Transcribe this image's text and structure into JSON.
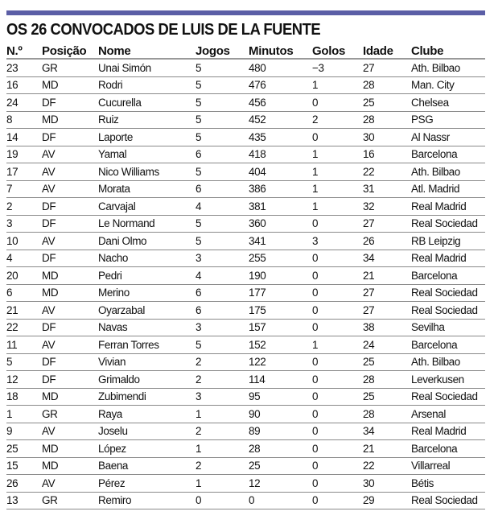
{
  "title": "OS 26 CONVOCADOS DE LUIS DE LA FUENTE",
  "accent_color": "#5b5ea6",
  "columns": [
    "N.º",
    "Posição",
    "Nome",
    "Jogos",
    "Minutos",
    "Golos",
    "Idade",
    "Clube"
  ],
  "rows": [
    [
      "23",
      "GR",
      "Unai Simón",
      "5",
      "480",
      "−3",
      "27",
      "Ath. Bilbao"
    ],
    [
      "16",
      "MD",
      "Rodri",
      "5",
      "476",
      "1",
      "28",
      "Man. City"
    ],
    [
      "24",
      "DF",
      "Cucurella",
      "5",
      "456",
      "0",
      "25",
      "Chelsea"
    ],
    [
      "8",
      "MD",
      "Ruiz",
      "5",
      "452",
      "2",
      "28",
      "PSG"
    ],
    [
      "14",
      "DF",
      "Laporte",
      "5",
      "435",
      "0",
      "30",
      "Al Nassr"
    ],
    [
      "19",
      "AV",
      "Yamal",
      "6",
      "418",
      "1",
      "16",
      "Barcelona"
    ],
    [
      "17",
      "AV",
      "Nico Williams",
      "5",
      "404",
      "1",
      "22",
      "Ath. Bilbao"
    ],
    [
      "7",
      "AV",
      "Morata",
      "6",
      "386",
      "1",
      "31",
      "Atl. Madrid"
    ],
    [
      "2",
      "DF",
      "Carvajal",
      "4",
      "381",
      "1",
      "32",
      "Real Madrid"
    ],
    [
      "3",
      "DF",
      "Le Normand",
      "5",
      "360",
      "0",
      "27",
      "Real Sociedad"
    ],
    [
      "10",
      "AV",
      "Dani Olmo",
      "5",
      "341",
      "3",
      "26",
      "RB Leipzig"
    ],
    [
      "4",
      "DF",
      "Nacho",
      "3",
      "255",
      "0",
      "34",
      "Real Madrid"
    ],
    [
      "20",
      "MD",
      "Pedri",
      "4",
      "190",
      "0",
      "21",
      "Barcelona"
    ],
    [
      "6",
      "MD",
      "Merino",
      "6",
      "177",
      "0",
      "27",
      "Real Sociedad"
    ],
    [
      "21",
      "AV",
      "Oyarzabal",
      "6",
      "175",
      "0",
      "27",
      "Real Sociedad"
    ],
    [
      "22",
      "DF",
      "Navas",
      "3",
      "157",
      "0",
      "38",
      "Sevilha"
    ],
    [
      "11",
      "AV",
      "Ferran Torres",
      "5",
      "152",
      "1",
      "24",
      "Barcelona"
    ],
    [
      "5",
      "DF",
      "Vivian",
      "2",
      "122",
      "0",
      "25",
      "Ath. Bilbao"
    ],
    [
      "12",
      "DF",
      "Grimaldo",
      "2",
      "114",
      "0",
      "28",
      "Leverkusen"
    ],
    [
      "18",
      "MD",
      "Zubimendi",
      "3",
      "95",
      "0",
      "25",
      "Real Sociedad"
    ],
    [
      "1",
      "GR",
      "Raya",
      "1",
      "90",
      "0",
      "28",
      "Arsenal"
    ],
    [
      "9",
      "AV",
      "Joselu",
      "2",
      "89",
      "0",
      "34",
      "Real Madrid"
    ],
    [
      "25",
      "MD",
      "López",
      "1",
      "28",
      "0",
      "21",
      "Barcelona"
    ],
    [
      "15",
      "MD",
      "Baena",
      "2",
      "25",
      "0",
      "22",
      "Villarreal"
    ],
    [
      "26",
      "AV",
      "Pérez",
      "1",
      "12",
      "0",
      "30",
      "Bétis"
    ],
    [
      "13",
      "GR",
      "Remiro",
      "0",
      "0",
      "0",
      "29",
      "Real Sociedad"
    ]
  ]
}
